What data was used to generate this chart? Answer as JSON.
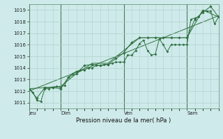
{
  "bg_color": "#ceeaea",
  "grid_color": "#b0d4cc",
  "line_color": "#2d6e3e",
  "marker_color": "#2d6e3e",
  "xlabel_text": "Pression niveau de la mer( hPa )",
  "ylim": [
    1010.5,
    1019.5
  ],
  "yticks": [
    1011,
    1012,
    1013,
    1014,
    1015,
    1016,
    1017,
    1018,
    1019
  ],
  "xlim": [
    0,
    144
  ],
  "day_labels": [
    "Jeu",
    "Dim",
    "Ven",
    "Sam"
  ],
  "day_positions": [
    0,
    24,
    72,
    120
  ],
  "series1": {
    "x": [
      0,
      3,
      6,
      9,
      12,
      15,
      18,
      21,
      24,
      27,
      30,
      33,
      36,
      39,
      42,
      45,
      48,
      51,
      54,
      57,
      60,
      63,
      66,
      69,
      72,
      75,
      78,
      81,
      84,
      87,
      90,
      93,
      96,
      99,
      102,
      105,
      108,
      111,
      114,
      117,
      120,
      123,
      126,
      129,
      132,
      135,
      138,
      141,
      144
    ],
    "y": [
      1012.2,
      1011.9,
      1011.2,
      1011.1,
      1012.2,
      1012.2,
      1012.3,
      1012.4,
      1012.3,
      1012.5,
      1013.2,
      1013.5,
      1013.7,
      1013.8,
      1013.8,
      1014.0,
      1014.0,
      1014.2,
      1014.2,
      1014.3,
      1014.3,
      1014.4,
      1014.5,
      1014.5,
      1014.5,
      1015.1,
      1015.1,
      1015.5,
      1016.1,
      1016.4,
      1015.5,
      1015.1,
      1015.2,
      1016.5,
      1016.0,
      1015.4,
      1016.0,
      1016.0,
      1016.0,
      1016.0,
      1016.0,
      1018.2,
      1018.3,
      1018.4,
      1018.9,
      1018.9,
      1018.9,
      1017.8,
      1018.4
    ]
  },
  "series2": {
    "x": [
      0,
      6,
      12,
      18,
      24,
      30,
      36,
      42,
      48,
      54,
      60,
      66,
      72,
      78,
      84,
      90,
      96,
      102,
      108,
      114,
      120,
      126,
      132,
      138,
      144
    ],
    "y": [
      1012.2,
      1011.4,
      1012.3,
      1012.3,
      1012.2,
      1013.2,
      1013.5,
      1014.2,
      1014.3,
      1014.2,
      1014.3,
      1014.8,
      1015.3,
      1016.2,
      1016.6,
      1016.6,
      1016.6,
      1016.6,
      1016.6,
      1016.6,
      1016.6,
      1018.2,
      1018.8,
      1019.3,
      1018.4
    ]
  },
  "series3": {
    "x": [
      0,
      12,
      24,
      36,
      48,
      60,
      72,
      84,
      96,
      108,
      120,
      132,
      144
    ],
    "y": [
      1012.2,
      1012.3,
      1012.4,
      1013.5,
      1014.4,
      1014.4,
      1015.5,
      1016.6,
      1016.6,
      1016.6,
      1016.6,
      1019.0,
      1018.4
    ]
  },
  "trend_line": {
    "x": [
      0,
      144
    ],
    "y": [
      1012.0,
      1018.5
    ]
  }
}
